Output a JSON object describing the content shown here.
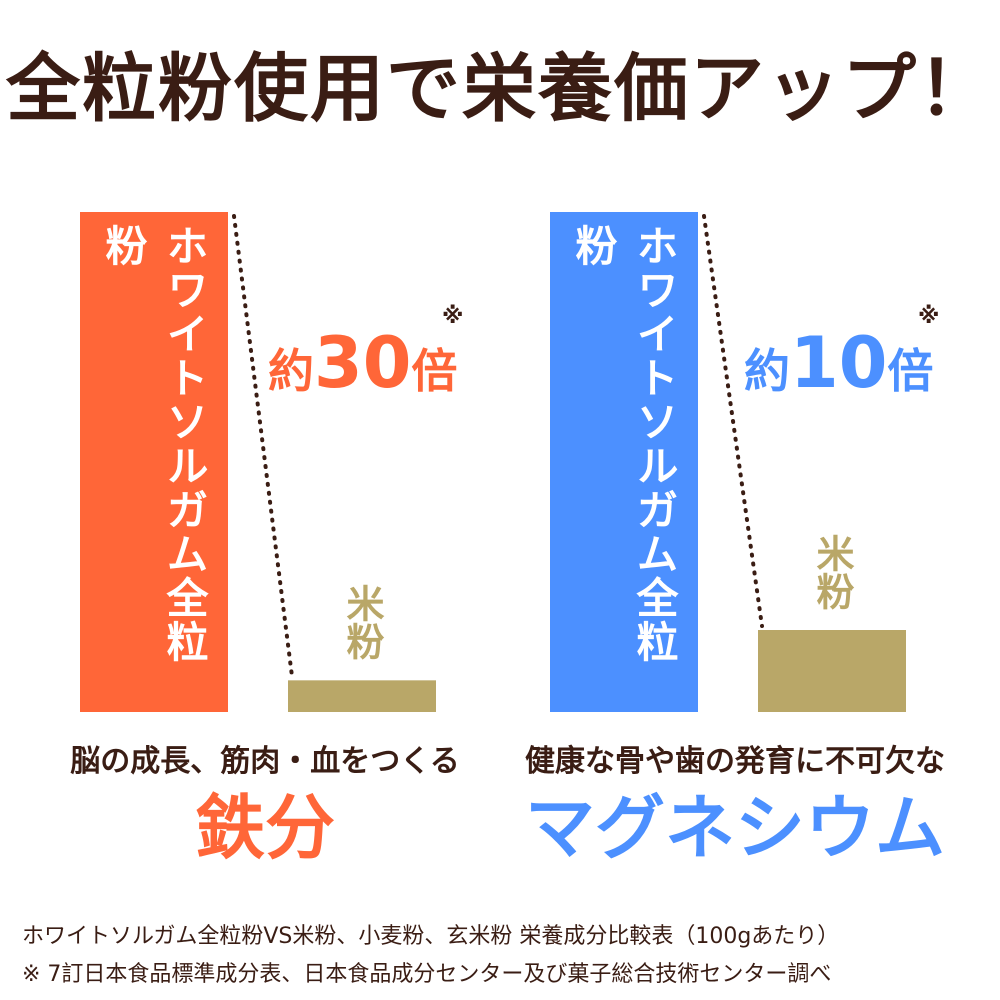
{
  "title": "全粒粉使用で栄養価アップ！",
  "colors": {
    "text": "#3a1d14",
    "iron": "#ff6638",
    "magnesium": "#4c90ff",
    "rice": "#b9a768"
  },
  "chart_data": [
    {
      "type": "bar",
      "categories": [
        "ホワイトソルガム全粒粉",
        "米粉"
      ],
      "values": [
        30,
        1
      ],
      "ratio_prefix": "約",
      "ratio_number": "30",
      "ratio_suffix": "倍",
      "note_mark": "※",
      "description": "脳の成長、筋肉・血をつくる",
      "nutrient": "鉄分",
      "color": "#ff6638"
    },
    {
      "type": "bar",
      "categories": [
        "ホワイトソルガム全粒粉",
        "米粉"
      ],
      "values": [
        10,
        1
      ],
      "ratio_prefix": "約",
      "ratio_number": "10",
      "ratio_suffix": "倍",
      "note_mark": "※",
      "description": "健康な骨や歯の発育に不可欠な",
      "nutrient": "マグネシウム",
      "color": "#4c90ff"
    }
  ],
  "footnotes": [
    "ホワイトソルガム全粒粉VS米粉、小麦粉、玄米粉 栄養成分比較表（100gあたり）",
    "※ 7訂日本食品標準成分表、日本食品成分センター及び菓子総合技術センター調べ"
  ]
}
